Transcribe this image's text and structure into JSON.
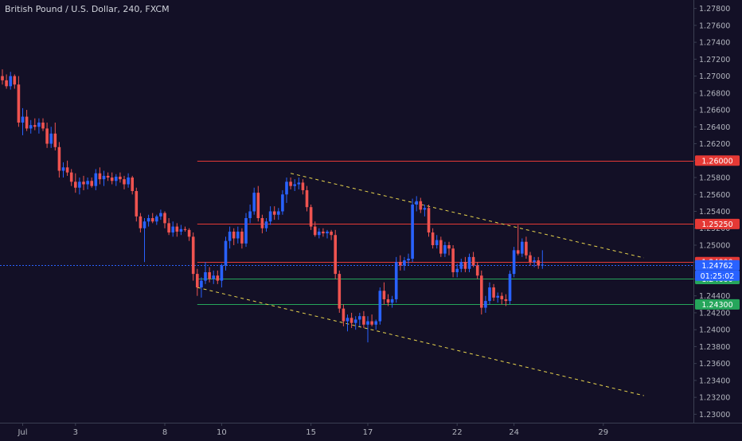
{
  "header": {
    "title": "British Pound / U.S. Dollar, 240, FXCM"
  },
  "colors": {
    "background": "#131026",
    "up_candle": "#2962ff",
    "down_candle": "#ef5350",
    "axis_text": "#b2b5be",
    "axis_line": "#3b3f52",
    "resistance_line": "#e53935",
    "support_line": "#26a65b",
    "channel_line": "#e8d44d",
    "price_line": "#2962ff"
  },
  "chart_data": {
    "type": "candlestick",
    "symbol": "British Pound / U.S. Dollar",
    "interval": "240",
    "source": "FXCM",
    "ylim": [
      1.229,
      1.279
    ],
    "y_ticks": [
      1.23,
      1.232,
      1.234,
      1.236,
      1.238,
      1.24,
      1.242,
      1.244,
      1.246,
      1.248,
      1.25,
      1.252,
      1.254,
      1.256,
      1.258,
      1.26,
      1.262,
      1.264,
      1.266,
      1.268,
      1.27,
      1.272,
      1.274,
      1.276,
      1.278
    ],
    "y_tick_labels": [
      "1.23000",
      "1.23200",
      "1.23400",
      "1.23600",
      "1.23800",
      "1.24000",
      "1.24200",
      "1.24400",
      "1.24600",
      "1.24800",
      "1.25000",
      "1.25200",
      "1.25400",
      "1.25600",
      "1.25800",
      "1.26000",
      "1.26200",
      "1.26400",
      "1.26600",
      "1.26800",
      "1.27000",
      "1.27200",
      "1.27400",
      "1.27600",
      "1.27800"
    ],
    "x_range": [
      0,
      172
    ],
    "x_ticks": [
      {
        "label": "Jul",
        "bar": 5
      },
      {
        "label": "3",
        "bar": 18
      },
      {
        "label": "8",
        "bar": 40
      },
      {
        "label": "10",
        "bar": 54
      },
      {
        "label": "15",
        "bar": 76
      },
      {
        "label": "17",
        "bar": 90
      },
      {
        "label": "22",
        "bar": 112
      },
      {
        "label": "24",
        "bar": 126
      },
      {
        "label": "29",
        "bar": 148
      }
    ],
    "candles": [
      [
        0,
        1.27,
        1.2708,
        1.269,
        1.2695
      ],
      [
        1,
        1.2695,
        1.2702,
        1.2685,
        1.2688
      ],
      [
        2,
        1.2688,
        1.2705,
        1.2684,
        1.27
      ],
      [
        3,
        1.27,
        1.2702,
        1.2685,
        1.269
      ],
      [
        4,
        1.269,
        1.27,
        1.264,
        1.2645
      ],
      [
        5,
        1.2645,
        1.2662,
        1.263,
        1.2652
      ],
      [
        6,
        1.2652,
        1.266,
        1.2635,
        1.2638
      ],
      [
        7,
        1.2638,
        1.2648,
        1.2632,
        1.2642
      ],
      [
        8,
        1.2642,
        1.265,
        1.2636,
        1.264
      ],
      [
        9,
        1.264,
        1.265,
        1.2632,
        1.2645
      ],
      [
        10,
        1.2645,
        1.265,
        1.2635,
        1.2638
      ],
      [
        11,
        1.2638,
        1.2645,
        1.2615,
        1.262
      ],
      [
        12,
        1.262,
        1.264,
        1.2615,
        1.2632
      ],
      [
        13,
        1.2632,
        1.2645,
        1.2612,
        1.2616
      ],
      [
        14,
        1.2616,
        1.2622,
        1.258,
        1.2588
      ],
      [
        15,
        1.2588,
        1.2598,
        1.258,
        1.2592
      ],
      [
        16,
        1.2592,
        1.26,
        1.2582,
        1.2586
      ],
      [
        17,
        1.2586,
        1.259,
        1.257,
        1.2575
      ],
      [
        18,
        1.2575,
        1.2585,
        1.2562,
        1.2568
      ],
      [
        19,
        1.2568,
        1.258,
        1.256,
        1.2575
      ],
      [
        20,
        1.2575,
        1.2582,
        1.2565,
        1.2572
      ],
      [
        21,
        1.2572,
        1.258,
        1.2566,
        1.2576
      ],
      [
        22,
        1.2576,
        1.258,
        1.2568,
        1.257
      ],
      [
        23,
        1.257,
        1.259,
        1.2565,
        1.2585
      ],
      [
        24,
        1.2585,
        1.2592,
        1.2572,
        1.2578
      ],
      [
        25,
        1.2578,
        1.2588,
        1.257,
        1.2582
      ],
      [
        26,
        1.2582,
        1.2586,
        1.2576,
        1.258
      ],
      [
        27,
        1.258,
        1.2586,
        1.2572,
        1.2576
      ],
      [
        28,
        1.2576,
        1.2584,
        1.257,
        1.2581
      ],
      [
        29,
        1.2581,
        1.2586,
        1.2574,
        1.2578
      ],
      [
        30,
        1.2578,
        1.2582,
        1.2566,
        1.2572
      ],
      [
        31,
        1.2572,
        1.2585,
        1.2568,
        1.258
      ],
      [
        32,
        1.258,
        1.2582,
        1.256,
        1.2564
      ],
      [
        33,
        1.2564,
        1.2568,
        1.2528,
        1.2534
      ],
      [
        34,
        1.2534,
        1.2538,
        1.2515,
        1.252
      ],
      [
        35,
        1.252,
        1.2532,
        1.248,
        1.2528
      ],
      [
        36,
        1.2528,
        1.2536,
        1.2522,
        1.2532
      ],
      [
        37,
        1.2532,
        1.2538,
        1.2526,
        1.2528
      ],
      [
        38,
        1.2528,
        1.2536,
        1.2524,
        1.2534
      ],
      [
        39,
        1.2534,
        1.2542,
        1.253,
        1.2538
      ],
      [
        40,
        1.2538,
        1.254,
        1.252,
        1.2526
      ],
      [
        41,
        1.2526,
        1.2532,
        1.2512,
        1.2515
      ],
      [
        42,
        1.2515,
        1.2528,
        1.251,
        1.2522
      ],
      [
        43,
        1.2522,
        1.2526,
        1.251,
        1.2516
      ],
      [
        44,
        1.2516,
        1.2524,
        1.2512,
        1.2519
      ],
      [
        45,
        1.2519,
        1.2522,
        1.2516,
        1.2518
      ],
      [
        46,
        1.2518,
        1.252,
        1.2505,
        1.251
      ],
      [
        47,
        1.251,
        1.2515,
        1.2458,
        1.2466
      ],
      [
        48,
        1.2466,
        1.2472,
        1.244,
        1.245
      ],
      [
        49,
        1.245,
        1.2462,
        1.2438,
        1.2458
      ],
      [
        50,
        1.2458,
        1.248,
        1.2454,
        1.2468
      ],
      [
        51,
        1.2468,
        1.2474,
        1.2456,
        1.246
      ],
      [
        52,
        1.246,
        1.247,
        1.2454,
        1.2464
      ],
      [
        53,
        1.2464,
        1.247,
        1.2454,
        1.2458
      ],
      [
        54,
        1.2458,
        1.2478,
        1.245,
        1.2476
      ],
      [
        55,
        1.2476,
        1.251,
        1.247,
        1.2505
      ],
      [
        56,
        1.2505,
        1.2522,
        1.2496,
        1.2516
      ],
      [
        57,
        1.2516,
        1.252,
        1.25,
        1.2508
      ],
      [
        58,
        1.2508,
        1.2522,
        1.2502,
        1.2516
      ],
      [
        59,
        1.2516,
        1.252,
        1.2496,
        1.2502
      ],
      [
        60,
        1.2502,
        1.2538,
        1.2498,
        1.2532
      ],
      [
        61,
        1.2532,
        1.2548,
        1.2526,
        1.254
      ],
      [
        62,
        1.254,
        1.2568,
        1.2536,
        1.2562
      ],
      [
        63,
        1.2562,
        1.257,
        1.2528,
        1.2532
      ],
      [
        64,
        1.2532,
        1.2536,
        1.2514,
        1.252
      ],
      [
        65,
        1.252,
        1.2532,
        1.2516,
        1.2528
      ],
      [
        66,
        1.2528,
        1.2546,
        1.2524,
        1.254
      ],
      [
        67,
        1.254,
        1.2546,
        1.253,
        1.2536
      ],
      [
        68,
        1.2536,
        1.2544,
        1.253,
        1.254
      ],
      [
        69,
        1.254,
        1.2565,
        1.2536,
        1.256
      ],
      [
        70,
        1.256,
        1.258,
        1.255,
        1.2575
      ],
      [
        71,
        1.2575,
        1.258,
        1.2566,
        1.257
      ],
      [
        72,
        1.257,
        1.2578,
        1.2564,
        1.2572
      ],
      [
        73,
        1.2572,
        1.258,
        1.2566,
        1.2574
      ],
      [
        74,
        1.2574,
        1.2578,
        1.256,
        1.2565
      ],
      [
        75,
        1.2565,
        1.257,
        1.254,
        1.2545
      ],
      [
        76,
        1.2545,
        1.2548,
        1.2518,
        1.2522
      ],
      [
        77,
        1.2522,
        1.2528,
        1.251,
        1.2512
      ],
      [
        78,
        1.2512,
        1.252,
        1.2508,
        1.2516
      ],
      [
        79,
        1.2516,
        1.252,
        1.251,
        1.2514
      ],
      [
        80,
        1.2514,
        1.2518,
        1.2508,
        1.2516
      ],
      [
        81,
        1.2516,
        1.2518,
        1.2506,
        1.2512
      ],
      [
        82,
        1.2512,
        1.2518,
        1.246,
        1.2466
      ],
      [
        83,
        1.2466,
        1.247,
        1.242,
        1.2425
      ],
      [
        84,
        1.2425,
        1.243,
        1.2404,
        1.241
      ],
      [
        85,
        1.241,
        1.2418,
        1.2398,
        1.2414
      ],
      [
        86,
        1.2414,
        1.242,
        1.2402,
        1.2408
      ],
      [
        87,
        1.2408,
        1.2416,
        1.24,
        1.2412
      ],
      [
        88,
        1.2412,
        1.242,
        1.2404,
        1.2416
      ],
      [
        89,
        1.2416,
        1.2422,
        1.2402,
        1.2406
      ],
      [
        90,
        1.2406,
        1.2416,
        1.2385,
        1.241
      ],
      [
        91,
        1.241,
        1.2418,
        1.2404,
        1.2406
      ],
      [
        92,
        1.2406,
        1.2412,
        1.24,
        1.241
      ],
      [
        93,
        1.241,
        1.245,
        1.2406,
        1.2446
      ],
      [
        94,
        1.2446,
        1.2456,
        1.243,
        1.2436
      ],
      [
        95,
        1.2436,
        1.2442,
        1.2428,
        1.2432
      ],
      [
        96,
        1.2432,
        1.244,
        1.2426,
        1.2436
      ],
      [
        97,
        1.2436,
        1.2486,
        1.2432,
        1.248
      ],
      [
        98,
        1.248,
        1.2488,
        1.247,
        1.2476
      ],
      [
        99,
        1.2476,
        1.2486,
        1.247,
        1.2482
      ],
      [
        100,
        1.2482,
        1.249,
        1.2476,
        1.2484
      ],
      [
        101,
        1.2484,
        1.2555,
        1.248,
        1.2548
      ],
      [
        102,
        1.2548,
        1.2558,
        1.254,
        1.2552
      ],
      [
        103,
        1.2552,
        1.2556,
        1.2538,
        1.2542
      ],
      [
        104,
        1.2542,
        1.2548,
        1.2534,
        1.2544
      ],
      [
        105,
        1.2544,
        1.2548,
        1.251,
        1.2515
      ],
      [
        106,
        1.2515,
        1.252,
        1.2496,
        1.25
      ],
      [
        107,
        1.25,
        1.2512,
        1.2496,
        1.2506
      ],
      [
        108,
        1.2506,
        1.251,
        1.2486,
        1.249
      ],
      [
        109,
        1.249,
        1.2504,
        1.2486,
        1.25
      ],
      [
        110,
        1.25,
        1.2504,
        1.2488,
        1.2496
      ],
      [
        111,
        1.2496,
        1.25,
        1.2462,
        1.2468
      ],
      [
        112,
        1.2468,
        1.2478,
        1.2462,
        1.2472
      ],
      [
        113,
        1.2472,
        1.2484,
        1.2468,
        1.248
      ],
      [
        114,
        1.248,
        1.2486,
        1.2468,
        1.2472
      ],
      [
        115,
        1.2472,
        1.249,
        1.2468,
        1.2486
      ],
      [
        116,
        1.2486,
        1.2492,
        1.2474,
        1.2476
      ],
      [
        117,
        1.2476,
        1.248,
        1.246,
        1.2464
      ],
      [
        118,
        1.2464,
        1.247,
        1.2418,
        1.2426
      ],
      [
        119,
        1.2426,
        1.244,
        1.242,
        1.2434
      ],
      [
        120,
        1.2434,
        1.2456,
        1.243,
        1.245
      ],
      [
        121,
        1.245,
        1.2454,
        1.2434,
        1.2438
      ],
      [
        122,
        1.2438,
        1.2444,
        1.2432,
        1.244
      ],
      [
        123,
        1.244,
        1.2444,
        1.243,
        1.2436
      ],
      [
        124,
        1.2436,
        1.2442,
        1.2428,
        1.2434
      ],
      [
        125,
        1.2434,
        1.247,
        1.243,
        1.2466
      ],
      [
        126,
        1.2466,
        1.2498,
        1.2462,
        1.2494
      ],
      [
        127,
        1.2494,
        1.2524,
        1.2488,
        1.249
      ],
      [
        128,
        1.249,
        1.2508,
        1.2486,
        1.2504
      ],
      [
        129,
        1.2504,
        1.251,
        1.2484,
        1.2488
      ],
      [
        130,
        1.2488,
        1.2492,
        1.2476,
        1.248
      ],
      [
        131,
        1.248,
        1.2486,
        1.2474,
        1.2482
      ],
      [
        132,
        1.2482,
        1.2486,
        1.2472,
        1.2476
      ],
      [
        133,
        1.2476,
        1.2494,
        1.2472,
        1.2477
      ]
    ],
    "horizontal_levels": [
      {
        "price": 1.26,
        "label": "1.26000",
        "role": "resistance",
        "start_bar": 48
      },
      {
        "price": 1.2525,
        "label": "1.25250",
        "role": "resistance",
        "start_bar": 48
      },
      {
        "price": 1.248,
        "label": "1.24800",
        "role": "resistance",
        "start_bar": 48
      },
      {
        "price": 1.246,
        "label": "1.24600",
        "role": "support",
        "start_bar": 48
      },
      {
        "price": 1.243,
        "label": "1.24300",
        "role": "support",
        "start_bar": 48
      }
    ],
    "trend_lines": [
      {
        "style": "dashed",
        "from": [
          71,
          1.2585
        ],
        "to": [
          158,
          1.2485
        ]
      },
      {
        "style": "dashed",
        "from": [
          48,
          1.245
        ],
        "to": [
          158,
          1.2322
        ]
      }
    ],
    "current_price": {
      "value": 1.24762,
      "label": "1.24762",
      "countdown": "01:25:02"
    },
    "grid": false,
    "legend": "none"
  }
}
